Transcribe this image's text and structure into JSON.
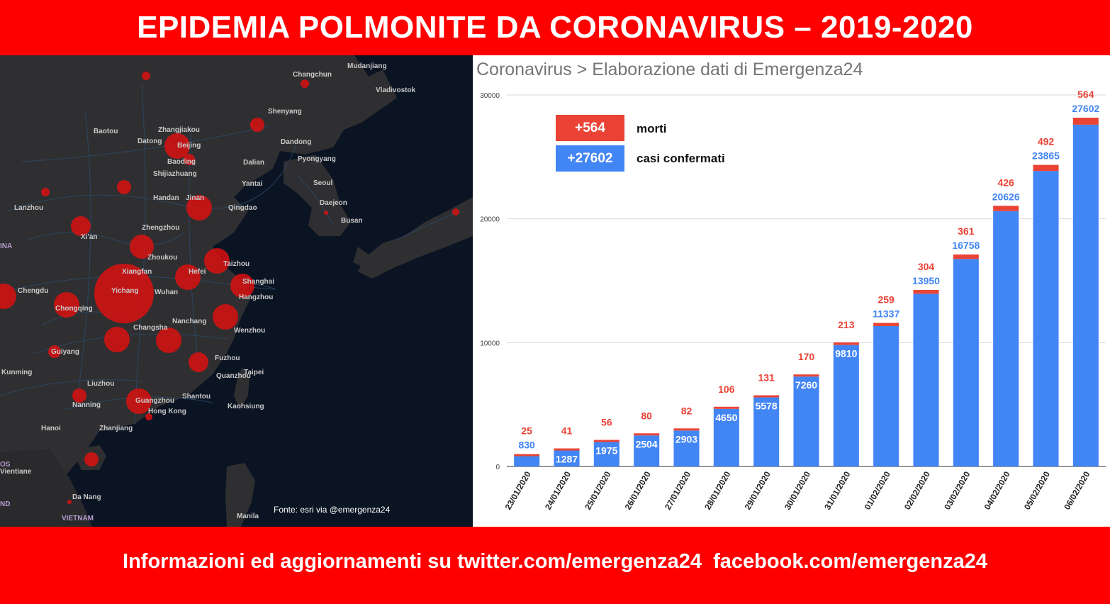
{
  "header": {
    "title": "EPIDEMIA POLMONITE DA CORONAVIRUS – 2019-2020"
  },
  "footer": {
    "text": "Informazioni ed aggiornamenti su twitter.com/emergenza24  facebook.com/emergenza24"
  },
  "map": {
    "source": "Fonte: esri via @emergenza24",
    "cities": [
      "Changchun",
      "Mudanjiang",
      "Vladivostok",
      "Shenyang",
      "Dandong",
      "Baotou",
      "Zhangjiakou",
      "Datong",
      "Beijing",
      "Baoding",
      "Dalian",
      "Pyongyang",
      "Shijiazhuang",
      "Yantai",
      "Seoul",
      "Jinan",
      "Lanzhou",
      "Handan",
      "Qingdao",
      "Daejeon",
      "Busan",
      "Zhengzhou",
      "Xi'an",
      "Zhoukou",
      "Taizhou",
      "Xiangfan",
      "Hefei",
      "Shanghai",
      "Yichang",
      "Wuhan",
      "Chengdu",
      "Hangzhou",
      "Chongqing",
      "Nanchang",
      "Changsha",
      "Wenzhou",
      "Guiyang",
      "Fuzhou",
      "Taipei",
      "Kunming",
      "Quanzhou",
      "Liuzhou",
      "Shantou",
      "Nanning",
      "Guangzhou",
      "Kaohsiung",
      "Hong Kong",
      "Hanoi",
      "Zhanjiang",
      "Vientiane",
      "Da Nang",
      "Manila",
      "VIETNAM",
      "INA",
      "OS",
      "ND"
    ],
    "bubble_color": "#e01010"
  },
  "chart_data": {
    "type": "bar",
    "title": "Coronavirus > Elaborazione dati di Emergenza24",
    "categories": [
      "23/01/2020",
      "24/01/2020",
      "25/01/2020",
      "26/01/2020",
      "27/01/2020",
      "28/01/2020",
      "29/01/2020",
      "30/01/2020",
      "31/01/2020",
      "01/02/2020",
      "02/02/2020",
      "03/02/2020",
      "04/02/2020",
      "05/02/2020",
      "06/02/2020"
    ],
    "series": [
      {
        "name": "casi confermati",
        "color": "#4285f4",
        "values": [
          830,
          1287,
          1975,
          2504,
          2903,
          4650,
          5578,
          7260,
          9810,
          11337,
          13950,
          16758,
          20626,
          23865,
          27602
        ]
      },
      {
        "name": "morti",
        "color": "#ea4335",
        "values": [
          25,
          41,
          56,
          80,
          82,
          106,
          131,
          170,
          213,
          259,
          304,
          361,
          426,
          492,
          564
        ]
      }
    ],
    "stacked": true,
    "ylim": [
      0,
      30000
    ],
    "yticks": [
      "0",
      "10000",
      "20000",
      "30000"
    ],
    "grid": true,
    "legend": [
      {
        "value": "+564",
        "label": "morti",
        "color": "#ea4335"
      },
      {
        "value": "+27602",
        "label": "casi confermati",
        "color": "#4285f4"
      }
    ],
    "legend_position": "top-left"
  }
}
